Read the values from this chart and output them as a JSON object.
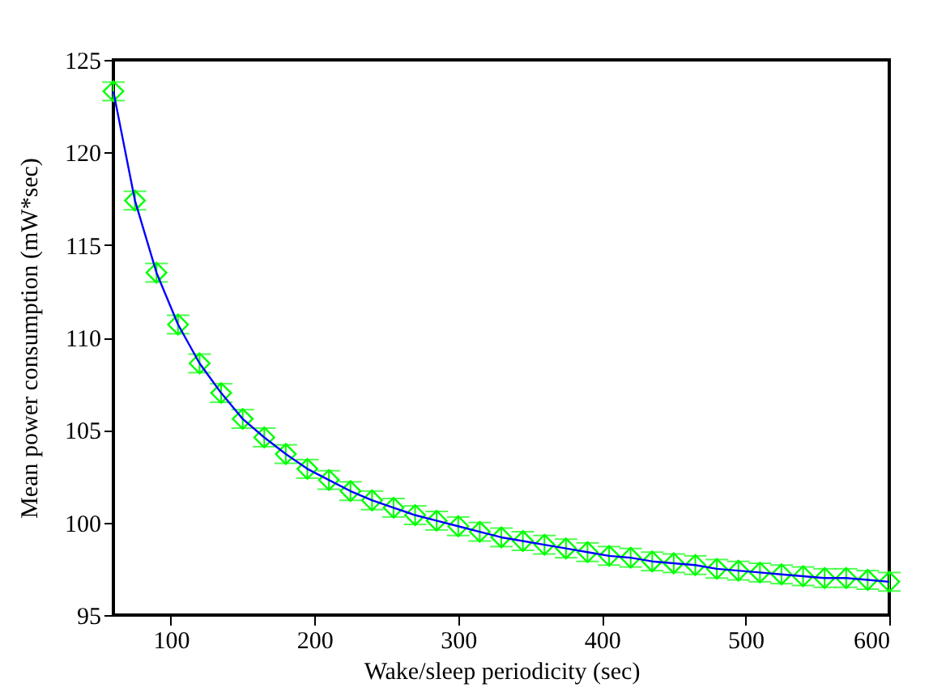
{
  "chart_data": {
    "type": "scatter",
    "xlabel": "Wake/sleep periodicity (sec)",
    "ylabel": "Mean power consumption (mW*sec)",
    "x": [
      60,
      75,
      90,
      105,
      120,
      135,
      150,
      165,
      180,
      195,
      210,
      225,
      240,
      255,
      270,
      285,
      300,
      315,
      330,
      345,
      360,
      375,
      390,
      405,
      420,
      435,
      450,
      465,
      480,
      495,
      510,
      525,
      540,
      555,
      570,
      585,
      600
    ],
    "series": [
      {
        "color": "#00ff00",
        "marker": "diamond",
        "values": [
          123.3,
          117.4,
          113.5,
          110.7,
          108.6,
          107.0,
          105.6,
          104.6,
          103.7,
          102.9,
          102.3,
          101.7,
          101.2,
          100.8,
          100.4,
          100.1,
          99.8,
          99.5,
          99.2,
          99.0,
          98.8,
          98.6,
          98.4,
          98.2,
          98.1,
          97.9,
          97.8,
          97.7,
          97.5,
          97.4,
          97.3,
          97.2,
          97.1,
          97.0,
          97.0,
          96.9,
          96.8
        ],
        "errors": [
          0.5,
          0.5,
          0.5,
          0.5,
          0.5,
          0.5,
          0.5,
          0.5,
          0.5,
          0.5,
          0.5,
          0.5,
          0.5,
          0.5,
          0.5,
          0.5,
          0.5,
          0.5,
          0.5,
          0.5,
          0.5,
          0.5,
          0.5,
          0.5,
          0.5,
          0.5,
          0.5,
          0.5,
          0.5,
          0.5,
          0.5,
          0.5,
          0.5,
          0.5,
          0.5,
          0.5,
          0.5
        ]
      },
      {
        "type": "line",
        "color": "#0000ff",
        "line_style": "solid",
        "values": [
          123.3,
          117.4,
          113.5,
          110.7,
          108.6,
          107.0,
          105.6,
          104.6,
          103.7,
          102.9,
          102.3,
          101.7,
          101.2,
          100.8,
          100.4,
          100.1,
          99.8,
          99.5,
          99.2,
          99.0,
          98.8,
          98.6,
          98.4,
          98.2,
          98.1,
          97.9,
          97.8,
          97.7,
          97.5,
          97.4,
          97.3,
          97.2,
          97.1,
          97.0,
          97.0,
          96.9,
          96.8
        ]
      }
    ],
    "xlim": [
      60,
      600
    ],
    "xticks": [
      100,
      200,
      300,
      400,
      500,
      600
    ],
    "ylim": [
      95,
      125
    ],
    "yticks": [
      95,
      100,
      105,
      110,
      115,
      120,
      125
    ],
    "grid": false
  }
}
